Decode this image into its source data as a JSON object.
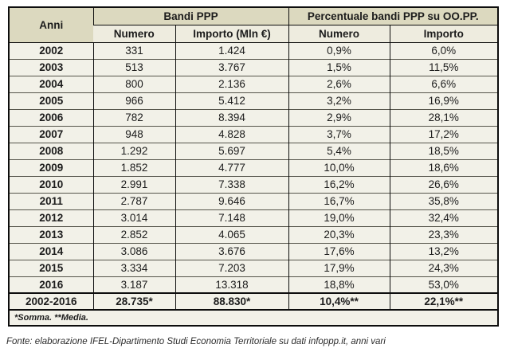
{
  "table": {
    "header": {
      "anni": "Anni",
      "group_bandi": "Bandi PPP",
      "group_percentuale": "Percentuale bandi PPP su OO.PP.",
      "col_numero": "Numero",
      "col_importo_mln": "Importo (Mln €)",
      "col_numero_pct": "Numero",
      "col_importo_pct": "Importo"
    },
    "rows": [
      {
        "anno": "2002",
        "numero": "331",
        "importo": "1.424",
        "pct_numero": "0,9%",
        "pct_importo": "6,0%"
      },
      {
        "anno": "2003",
        "numero": "513",
        "importo": "3.767",
        "pct_numero": "1,5%",
        "pct_importo": "11,5%"
      },
      {
        "anno": "2004",
        "numero": "800",
        "importo": "2.136",
        "pct_numero": "2,6%",
        "pct_importo": "6,6%"
      },
      {
        "anno": "2005",
        "numero": "966",
        "importo": "5.412",
        "pct_numero": "3,2%",
        "pct_importo": "16,9%"
      },
      {
        "anno": "2006",
        "numero": "782",
        "importo": "8.394",
        "pct_numero": "2,9%",
        "pct_importo": "28,1%"
      },
      {
        "anno": "2007",
        "numero": "948",
        "importo": "4.828",
        "pct_numero": "3,7%",
        "pct_importo": "17,2%"
      },
      {
        "anno": "2008",
        "numero": "1.292",
        "importo": "5.697",
        "pct_numero": "5,4%",
        "pct_importo": "18,5%"
      },
      {
        "anno": "2009",
        "numero": "1.852",
        "importo": "4.777",
        "pct_numero": "10,0%",
        "pct_importo": "18,6%"
      },
      {
        "anno": "2010",
        "numero": "2.991",
        "importo": "7.338",
        "pct_numero": "16,2%",
        "pct_importo": "26,6%"
      },
      {
        "anno": "2011",
        "numero": "2.787",
        "importo": "9.646",
        "pct_numero": "16,7%",
        "pct_importo": "35,8%"
      },
      {
        "anno": "2012",
        "numero": "3.014",
        "importo": "7.148",
        "pct_numero": "19,0%",
        "pct_importo": "32,4%"
      },
      {
        "anno": "2013",
        "numero": "2.852",
        "importo": "4.065",
        "pct_numero": "20,3%",
        "pct_importo": "23,3%"
      },
      {
        "anno": "2014",
        "numero": "3.086",
        "importo": "3.676",
        "pct_numero": "17,6%",
        "pct_importo": "13,2%"
      },
      {
        "anno": "2015",
        "numero": "3.334",
        "importo": "7.203",
        "pct_numero": "17,9%",
        "pct_importo": "24,3%"
      },
      {
        "anno": "2016",
        "numero": "3.187",
        "importo": "13.318",
        "pct_numero": "18,8%",
        "pct_importo": "53,0%"
      }
    ],
    "total": {
      "anno": "2002-2016",
      "numero": "28.735*",
      "importo": "88.830*",
      "pct_numero": "10,4%**",
      "pct_importo": "22,1%**"
    },
    "note": "*Somma. **Media."
  },
  "footer": {
    "fonte": "Fonte: elaborazione IFEL-Dipartimento Studi Economia Territoriale su dati infoppp.it, anni vari"
  },
  "colors": {
    "header_group_bg": "#dcd9bf",
    "header_sub_bg": "#eeecdf",
    "cell_bg": "#f2f1e8",
    "border": "#0d0d0d"
  },
  "chart_data": {
    "type": "table",
    "title": "Bandi PPP e percentuale bandi PPP su OO.PP., 2002-2016",
    "categories": [
      "2002",
      "2003",
      "2004",
      "2005",
      "2006",
      "2007",
      "2008",
      "2009",
      "2010",
      "2011",
      "2012",
      "2013",
      "2014",
      "2015",
      "2016"
    ],
    "series": [
      {
        "name": "Bandi PPP - Numero",
        "values": [
          331,
          513,
          800,
          966,
          782,
          948,
          1292,
          1852,
          2991,
          2787,
          3014,
          2852,
          3086,
          3334,
          3187
        ]
      },
      {
        "name": "Bandi PPP - Importo (Mln €)",
        "values": [
          1424,
          3767,
          2136,
          5412,
          8394,
          4828,
          5697,
          4777,
          7338,
          9646,
          7148,
          4065,
          3676,
          7203,
          13318
        ]
      },
      {
        "name": "Percentuale bandi PPP su OO.PP. - Numero (%)",
        "values": [
          0.9,
          1.5,
          2.6,
          3.2,
          2.9,
          3.7,
          5.4,
          10.0,
          16.2,
          16.7,
          19.0,
          20.3,
          17.6,
          17.9,
          18.8
        ]
      },
      {
        "name": "Percentuale bandi PPP su OO.PP. - Importo (%)",
        "values": [
          6.0,
          11.5,
          6.6,
          16.9,
          28.1,
          17.2,
          18.5,
          18.6,
          26.6,
          35.8,
          32.4,
          23.3,
          13.2,
          24.3,
          53.0
        ]
      }
    ],
    "totals": {
      "period": "2002-2016",
      "numero_somma": 28735,
      "importo_somma_mln": 88830,
      "pct_numero_media": 10.4,
      "pct_importo_media": 22.1
    },
    "notes": "*Somma. **Media."
  }
}
